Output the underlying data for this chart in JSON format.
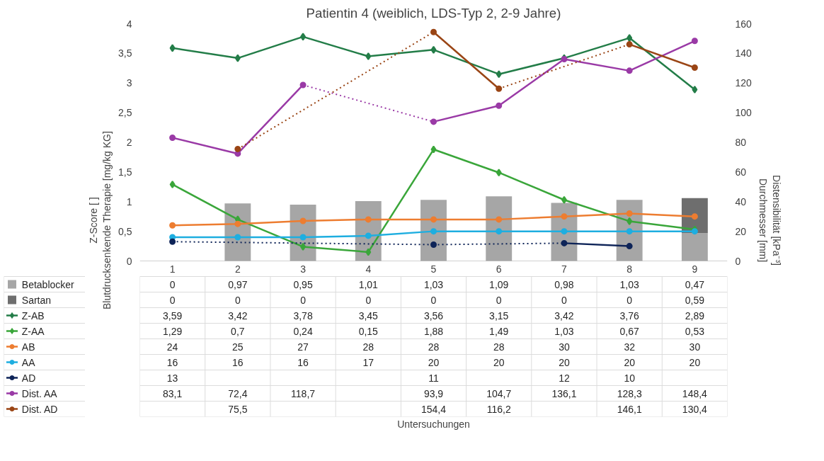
{
  "chart_data": {
    "type": "line",
    "title": "Patientin 4 (weiblich, LDS-Typ 2, 2-9 Jahre)",
    "annotations": [
      "Untersuchungen"
    ],
    "ylabel": "Z-Score [ ]\nBlutdrucksenkende Therapie [mg/kg KG]",
    "y2label": "Distensibilität [kPa⁻³]\nDurchmesser [mm]",
    "categories": [
      "1",
      "2",
      "3",
      "4",
      "5",
      "6",
      "7",
      "8",
      "9"
    ],
    "stacked": true,
    "legend": "left",
    "marker": "circle",
    "ylim": [
      0,
      4
    ],
    "yticks": [
      0,
      {
        "value": 0.5,
        "label": "0,5"
      },
      1,
      {
        "value": 1.5,
        "label": "1,5"
      },
      2,
      {
        "value": 2.5,
        "label": "2,5"
      },
      3,
      {
        "value": 3.5,
        "label": "3,5"
      },
      4
    ],
    "y2lim": [
      0,
      160
    ],
    "y2ticks": [
      0,
      20,
      40,
      60,
      80,
      100,
      120,
      140,
      160
    ],
    "series": [
      {
        "name": "Betablocker",
        "type": "bar",
        "color": "#a6a6a6",
        "values": [
          0,
          0.97,
          0.95,
          1.01,
          1.03,
          1.09,
          0.98,
          1.03,
          0.47
        ],
        "value_labels": [
          "0",
          "0,97",
          "0,95",
          "1,01",
          "1,03",
          "1,09",
          "0,98",
          "1,03",
          "0,47"
        ]
      },
      {
        "name": "Sartan",
        "type": "bar",
        "color": "#6e6e6e",
        "values": [
          0,
          0,
          0,
          0,
          0,
          0,
          0,
          0,
          0.59
        ],
        "value_labels": [
          "0",
          "0",
          "0",
          "0",
          "0",
          "0",
          "0",
          "0",
          "0,59"
        ]
      },
      {
        "name": "Z-AB",
        "color": "#237d48",
        "marker": "diamond",
        "values": [
          3.59,
          3.42,
          3.78,
          3.45,
          3.56,
          3.15,
          3.42,
          3.76,
          2.89
        ],
        "value_labels": [
          "3,59",
          "3,42",
          "3,78",
          "3,45",
          "3,56",
          "3,15",
          "3,42",
          "3,76",
          "2,89"
        ]
      },
      {
        "name": "Z-AA",
        "color": "#3aa63a",
        "marker": "diamond",
        "values": [
          1.29,
          0.7,
          0.24,
          0.15,
          1.88,
          1.49,
          1.03,
          0.67,
          0.53
        ],
        "value_labels": [
          "1,29",
          "0,7",
          "0,24",
          "0,15",
          "1,88",
          "1,49",
          "1,03",
          "0,67",
          "0,53"
        ]
      },
      {
        "name": "AB",
        "axis": "y2",
        "color": "#ed7d31",
        "values": [
          24,
          25,
          27,
          28,
          28,
          28,
          30,
          32,
          30
        ],
        "value_labels": [
          "24",
          "25",
          "27",
          "28",
          "28",
          "28",
          "30",
          "32",
          "30"
        ]
      },
      {
        "name": "AA",
        "axis": "y2",
        "color": "#1eaee0",
        "values": [
          16,
          16,
          16,
          17,
          20,
          20,
          20,
          20,
          20
        ],
        "value_labels": [
          "16",
          "16",
          "16",
          "17",
          "20",
          "20",
          "20",
          "20",
          "20"
        ]
      },
      {
        "name": "AD",
        "axis": "y2",
        "color": "#0e2458",
        "values": [
          13,
          null,
          null,
          null,
          11,
          null,
          12,
          10,
          null
        ],
        "value_labels": [
          "13",
          null,
          null,
          null,
          "11",
          null,
          "12",
          "10",
          null
        ]
      },
      {
        "name": "Dist. AA",
        "axis": "y2",
        "color": "#9a3aa6",
        "values": [
          83.1,
          72.4,
          118.7,
          null,
          93.9,
          104.7,
          136.1,
          128.3,
          148.4
        ],
        "value_labels": [
          "83,1",
          "72,4",
          "118,7",
          null,
          "93,9",
          "104,7",
          "136,1",
          "128,3",
          "148,4"
        ]
      },
      {
        "name": "Dist. AD",
        "axis": "y2",
        "color": "#9a4515",
        "values": [
          null,
          75.5,
          null,
          null,
          154.4,
          116.2,
          null,
          146.1,
          130.4
        ],
        "value_labels": [
          null,
          "75,5",
          null,
          null,
          "154,4",
          "116,2",
          null,
          "146,1",
          "130,4"
        ]
      }
    ]
  }
}
